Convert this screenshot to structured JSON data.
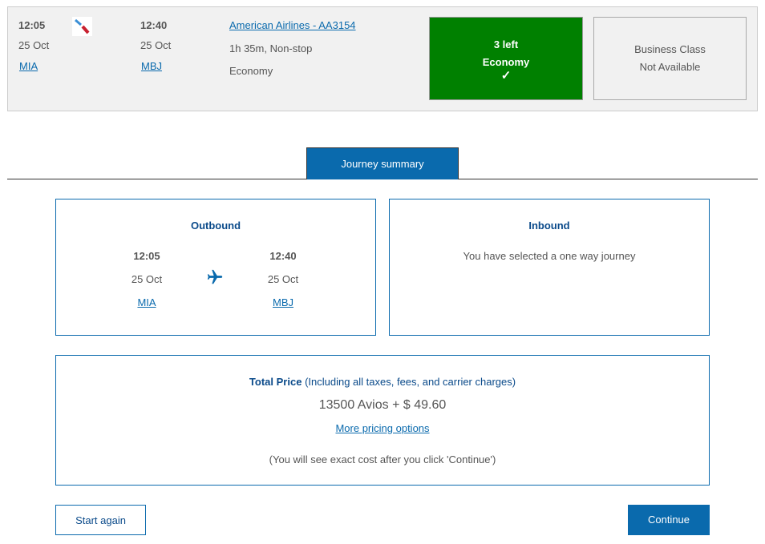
{
  "flight": {
    "dep_time": "12:05",
    "dep_date": "25 Oct",
    "dep_code": "MIA",
    "arr_time": "12:40",
    "arr_date": "25 Oct",
    "arr_code": "MBJ",
    "airline": "American Airlines - AA3154",
    "duration": "1h 35m, Non-stop",
    "cabin": "Economy",
    "economy_option": {
      "seats": "3 left",
      "label": "Economy",
      "check": "✓",
      "color": "#008000"
    },
    "business_option": {
      "line1": "Business Class",
      "line2": "Not Available"
    }
  },
  "tab": {
    "label": "Journey summary"
  },
  "outbound": {
    "title": "Outbound",
    "dep_time": "12:05",
    "dep_date": "25 Oct",
    "dep_code": "MIA",
    "arr_time": "12:40",
    "arr_date": "25 Oct",
    "arr_code": "MBJ",
    "icon": "airplane-icon"
  },
  "inbound": {
    "title": "Inbound",
    "message": "You have selected a one way journey"
  },
  "price": {
    "title": "Total Price",
    "subtitle": "(Including all taxes, fees, and carrier charges)",
    "amount": "13500 Avios + $ 49.60",
    "more_link": "More pricing options",
    "note": "(You will see exact cost after you click 'Continue')"
  },
  "buttons": {
    "start_again": "Start again",
    "continue": "Continue"
  },
  "colors": {
    "accent": "#0a6aad",
    "selected": "#008000"
  }
}
